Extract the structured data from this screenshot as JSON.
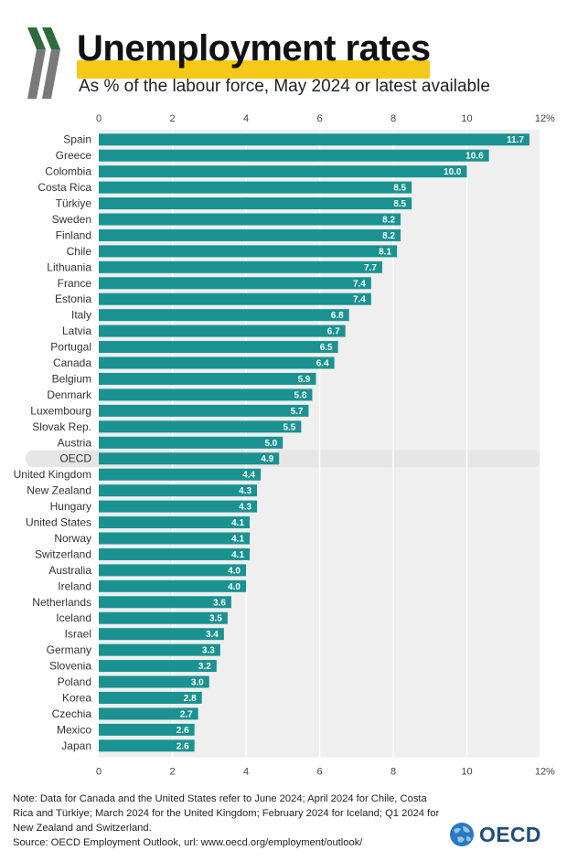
{
  "title": "Unemployment rates",
  "subtitle": "As % of the labour force, May 2024 or latest available",
  "colors": {
    "bar": "#1a9291",
    "highlight_band": "#e6e6e6",
    "plot_bg": "#efefef",
    "gridline": "#ffffff",
    "title_highlight": "#f6c817",
    "logo_green": "#2f6b3a",
    "logo_gray": "#7a7a7a",
    "oecd_blue": "#1f4e79"
  },
  "chart_data": {
    "type": "bar",
    "orientation": "horizontal",
    "title": "Unemployment rates",
    "subtitle": "As % of the labour force, May 2024 or latest available",
    "unit_label": "%",
    "xlim": [
      0,
      12
    ],
    "ticks": [
      "0",
      "2",
      "4",
      "6",
      "8",
      "10",
      "12"
    ],
    "tick_values": [
      0,
      2,
      4,
      6,
      8,
      10,
      12
    ],
    "highlight": "OECD",
    "categories": [
      "Spain",
      "Greece",
      "Colombia",
      "Costa Rica",
      "Türkiye",
      "Sweden",
      "Finland",
      "Chile",
      "Lithuania",
      "France",
      "Estonia",
      "Italy",
      "Latvia",
      "Portugal",
      "Canada",
      "Belgium",
      "Denmark",
      "Luxembourg",
      "Slovak Rep.",
      "Austria",
      "OECD",
      "United Kingdom",
      "New Zealand",
      "Hungary",
      "United States",
      "Norway",
      "Switzerland",
      "Australia",
      "Ireland",
      "Netherlands",
      "Iceland",
      "Israel",
      "Germany",
      "Slovenia",
      "Poland",
      "Korea",
      "Czechia",
      "Mexico",
      "Japan"
    ],
    "values": [
      11.7,
      10.6,
      10.0,
      8.5,
      8.5,
      8.2,
      8.2,
      8.1,
      7.7,
      7.4,
      7.4,
      6.8,
      6.7,
      6.5,
      6.4,
      5.9,
      5.8,
      5.7,
      5.5,
      5.0,
      4.9,
      4.4,
      4.3,
      4.3,
      4.1,
      4.1,
      4.1,
      4.0,
      4.0,
      3.6,
      3.5,
      3.4,
      3.3,
      3.2,
      3.0,
      2.8,
      2.7,
      2.6,
      2.6
    ],
    "value_labels": [
      "11.7",
      "10.6",
      "10.0",
      "8.5",
      "8.5",
      "8.2",
      "8.2",
      "8.1",
      "7.7",
      "7.4",
      "7.4",
      "6.8",
      "6.7",
      "6.5",
      "6.4",
      "5.9",
      "5.8",
      "5.7",
      "5.5",
      "5.0",
      "4.9",
      "4.4",
      "4.3",
      "4.3",
      "4.1",
      "4.1",
      "4.1",
      "4.0",
      "4.0",
      "3.6",
      "3.5",
      "3.4",
      "3.3",
      "3.2",
      "3.0",
      "2.8",
      "2.7",
      "2.6",
      "2.6"
    ]
  },
  "notes": {
    "note": "Note: Data for Canada and the United States refer to June 2024; April 2024 for Chile, Costa Rica and Türkiye; March 2024 for the United Kingdom; February 2024 for Iceland; Q1 2024 for New Zealand and Switzerland.",
    "source": "Source: OECD Employment Outlook, url: www.oecd.org/employment/outlook/"
  },
  "logo": {
    "text": "OECD"
  }
}
